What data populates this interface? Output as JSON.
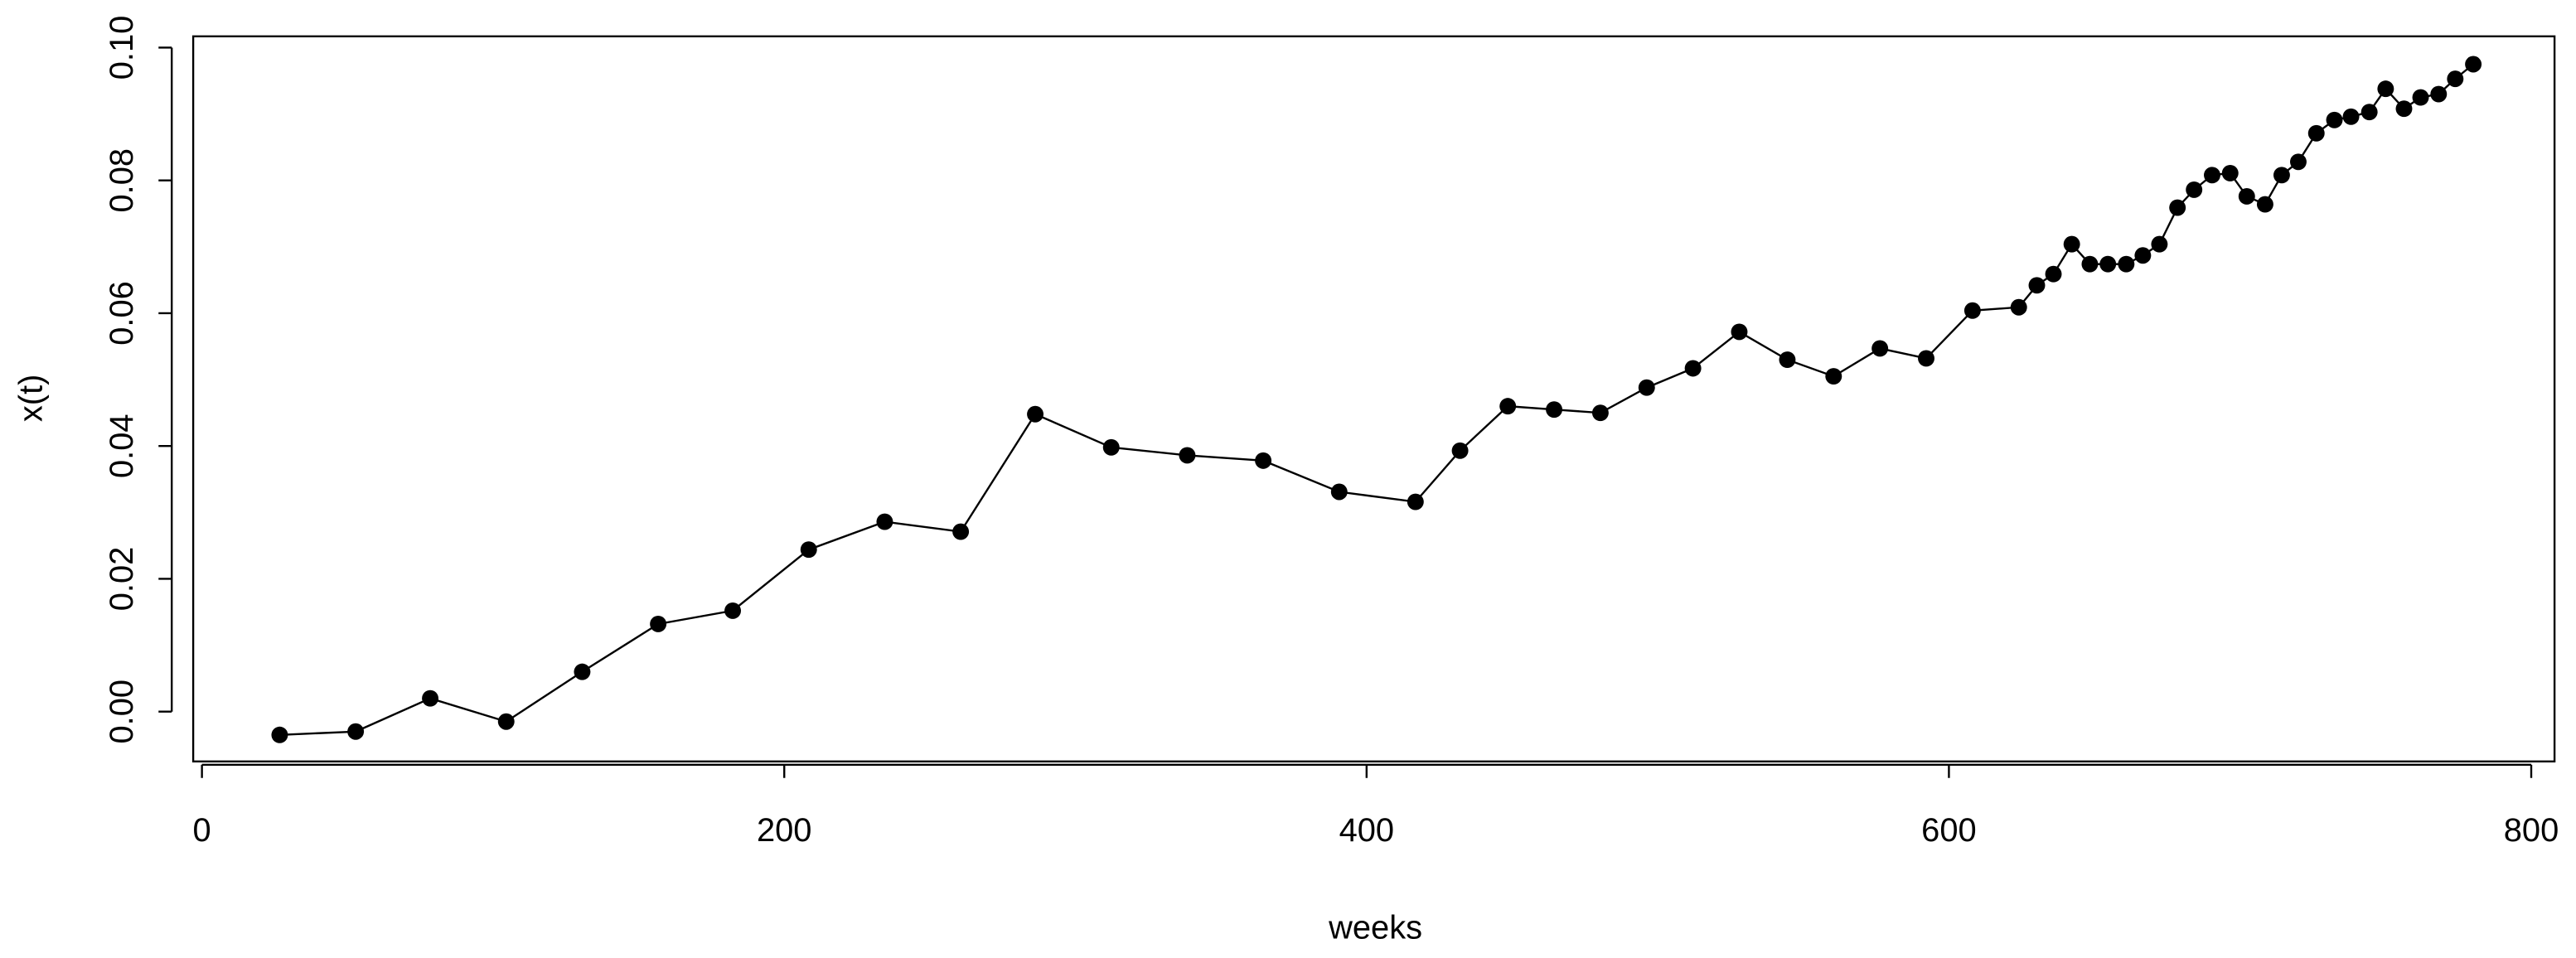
{
  "chart_data": {
    "type": "line",
    "xlabel": "weeks",
    "ylabel": "x(t)",
    "x": [
      26.7,
      52.8,
      78.4,
      104.5,
      130.6,
      156.7,
      182.3,
      208.4,
      234.5,
      260.6,
      286.2,
      312.3,
      338.4,
      364.5,
      390.6,
      416.8,
      432.1,
      448.5,
      464.4,
      480.3,
      496.2,
      512.1,
      528.0,
      544.5,
      560.4,
      576.3,
      592.2,
      608.1,
      624.0,
      630.2,
      635.9,
      642.2,
      648.4,
      654.6,
      660.9,
      666.6,
      672.3,
      678.5,
      684.2,
      690.4,
      696.6,
      702.3,
      708.6,
      714.3,
      720.0,
      726.2,
      732.4,
      738.1,
      744.4,
      750.0,
      756.3,
      762.0,
      768.2,
      773.9,
      780.1
    ],
    "values": [
      -0.0035,
      -0.003,
      0.002,
      -0.0015,
      0.006,
      0.0132,
      0.0152,
      0.0244,
      0.0286,
      0.0271,
      0.0448,
      0.0398,
      0.0386,
      0.0378,
      0.0331,
      0.0316,
      0.0393,
      0.046,
      0.0455,
      0.045,
      0.0488,
      0.0517,
      0.0572,
      0.053,
      0.0505,
      0.0547,
      0.0532,
      0.0604,
      0.0609,
      0.0642,
      0.0659,
      0.0704,
      0.0674,
      0.0674,
      0.0674,
      0.0687,
      0.0704,
      0.0759,
      0.0786,
      0.0808,
      0.0811,
      0.0776,
      0.0764,
      0.0808,
      0.0828,
      0.0871,
      0.0891,
      0.0896,
      0.0903,
      0.0938,
      0.0908,
      0.0925,
      0.093,
      0.0953,
      0.0975
    ],
    "color": "#000000",
    "markers": true,
    "xlim": [
      -3,
      808
    ],
    "xticks": [
      0,
      200,
      400,
      600,
      800
    ],
    "ylim": [
      -0.0075,
      0.1017
    ],
    "yticks": [
      {
        "value": 0,
        "label": "0.00"
      },
      {
        "value": 0.02,
        "label": "0.02"
      },
      {
        "value": 0.04,
        "label": "0.04"
      },
      {
        "value": 0.06,
        "label": "0.06"
      },
      {
        "value": 0.08,
        "label": "0.08"
      },
      {
        "value": 0.1,
        "label": "0.10"
      }
    ]
  }
}
